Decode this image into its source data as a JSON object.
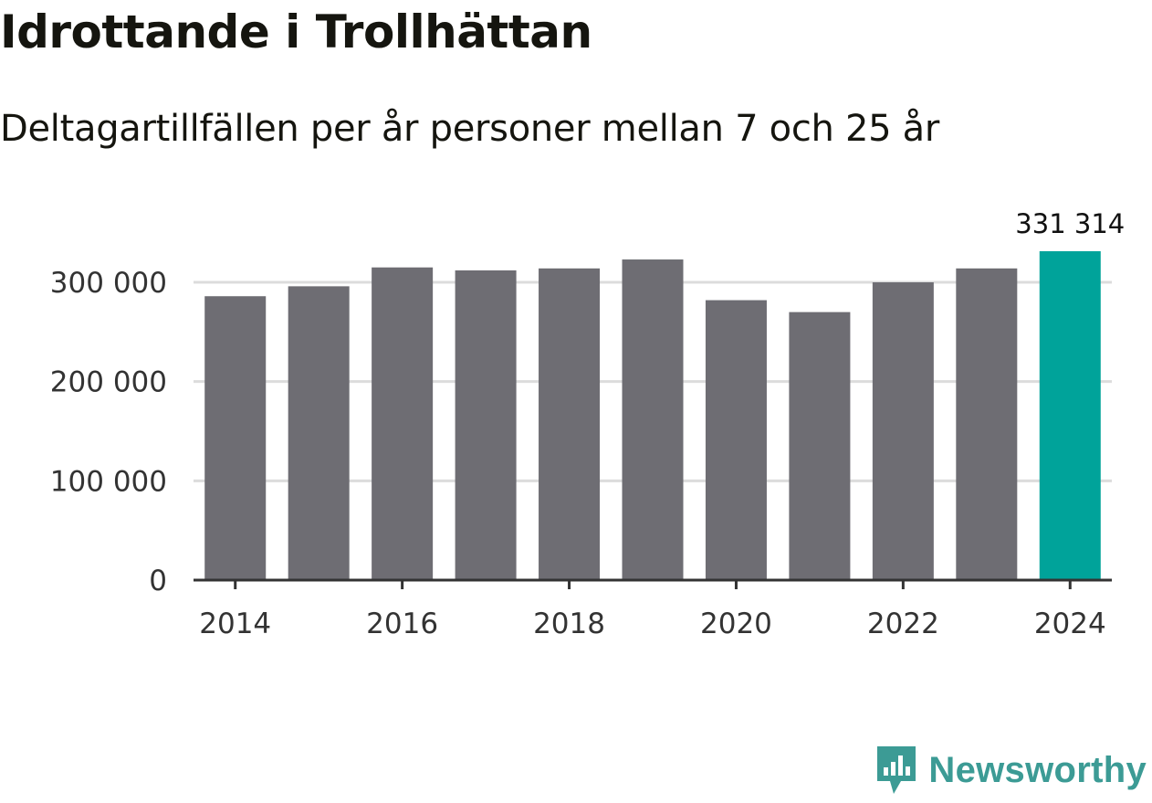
{
  "title": "Idrottande i Trollhättan",
  "subtitle": "Deltagartillfällen per år personer mellan 7 och 25 år",
  "brand": {
    "name": "Newsworthy",
    "icon": "newsworthy-logo-icon",
    "color": "#3c9b95"
  },
  "colors": {
    "bar": "#6e6d73",
    "highlight": "#00a39a",
    "grid": "#dcdcdc",
    "axis": "#333333"
  },
  "chart_data": {
    "type": "bar",
    "categories": [
      "2014",
      "2015",
      "2016",
      "2017",
      "2018",
      "2019",
      "2020",
      "2021",
      "2022",
      "2023",
      "2024"
    ],
    "values": [
      286000,
      296000,
      315000,
      312000,
      314000,
      323000,
      282000,
      270000,
      300000,
      314000,
      331314
    ],
    "highlight_index": 10,
    "highlight_label": "331 314",
    "x_tick_labels": [
      "2014",
      "2016",
      "2018",
      "2020",
      "2022",
      "2024"
    ],
    "y_ticks": [
      0,
      100000,
      200000,
      300000
    ],
    "y_tick_labels": [
      "0",
      "100 000",
      "200 000",
      "300 000"
    ],
    "ylim": [
      0,
      331314
    ],
    "grid": true,
    "legend": "none"
  }
}
